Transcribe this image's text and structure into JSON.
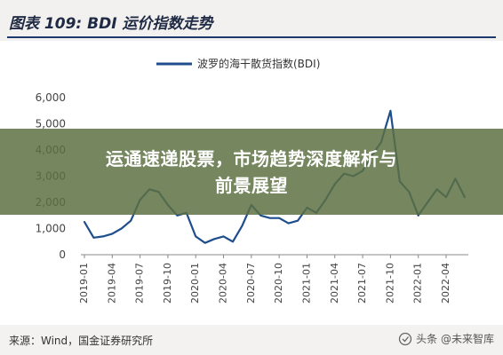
{
  "header": {
    "title": "图表 109:  BDI 运价指数走势"
  },
  "banner": {
    "line1": "运通速递股票，市场趋势深度解析与",
    "line2": "前景展望"
  },
  "footer": {
    "source": "来源：Wind，国金证券研究所",
    "watermark": "头条 @未来智库"
  },
  "chart_data": {
    "type": "line",
    "title": "",
    "xlabel": "",
    "ylabel": "",
    "ylim": [
      0,
      6000
    ],
    "yticks": [
      "0",
      "1,000",
      "2,000",
      "3,000",
      "4,000",
      "5,000",
      "6,000"
    ],
    "xticks": [
      "2019-01",
      "2019-04",
      "2019-07",
      "2019-10",
      "2020-01",
      "2020-04",
      "2020-07",
      "2020-10",
      "2021-01",
      "2021-04",
      "2021-07",
      "2021-10",
      "2022-01",
      "2022-04"
    ],
    "legend": "top-center",
    "series": [
      {
        "name": "波罗的海干散货指数(BDI)",
        "color": "#1f4e8c",
        "x": [
          "2019-01",
          "2019-02",
          "2019-03",
          "2019-04",
          "2019-05",
          "2019-06",
          "2019-07",
          "2019-08",
          "2019-09",
          "2019-10",
          "2019-11",
          "2019-12",
          "2020-01",
          "2020-02",
          "2020-03",
          "2020-04",
          "2020-05",
          "2020-06",
          "2020-07",
          "2020-08",
          "2020-09",
          "2020-10",
          "2020-11",
          "2020-12",
          "2021-01",
          "2021-02",
          "2021-03",
          "2021-04",
          "2021-05",
          "2021-06",
          "2021-07",
          "2021-08",
          "2021-09",
          "2021-10",
          "2021-11",
          "2021-12",
          "2022-01",
          "2022-02",
          "2022-03",
          "2022-04",
          "2022-05",
          "2022-06"
        ],
        "values": [
          1250,
          650,
          700,
          800,
          1000,
          1300,
          2100,
          2500,
          2400,
          1900,
          1500,
          1600,
          700,
          450,
          600,
          700,
          500,
          1100,
          1900,
          1500,
          1400,
          1400,
          1200,
          1300,
          1800,
          1600,
          2100,
          2700,
          3100,
          3000,
          3200,
          3800,
          4300,
          5500,
          2800,
          2400,
          1500,
          2000,
          2500,
          2200,
          2900,
          2200
        ]
      }
    ]
  }
}
